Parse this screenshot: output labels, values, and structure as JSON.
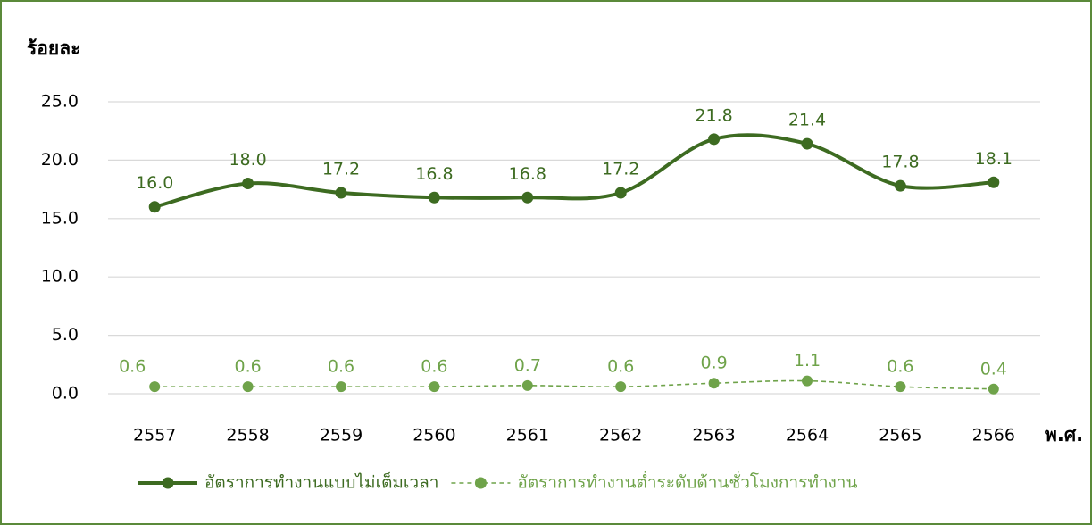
{
  "chart_data": {
    "type": "line",
    "y_label": "ร้อยละ",
    "x_label": "พ.ศ.",
    "categories": [
      "2557",
      "2558",
      "2559",
      "2560",
      "2561",
      "2562",
      "2563",
      "2564",
      "2565",
      "2566"
    ],
    "series": [
      {
        "name": "อัตราการทำงานแบบไม่เต็มเวลา",
        "color": "#3d6b21",
        "dashed": false,
        "values": [
          16.0,
          18.0,
          17.2,
          16.8,
          16.8,
          17.2,
          21.8,
          21.4,
          17.8,
          18.1
        ],
        "value_labels": [
          "16.0",
          "18.0",
          "17.2",
          "16.8",
          "16.8",
          "17.2",
          "21.8",
          "21.4",
          "17.8",
          "18.1"
        ]
      },
      {
        "name": "อัตราการทำงานต่ำระดับด้านชั่วโมงการทำงาน",
        "color": "#6fa34a",
        "dashed": true,
        "values": [
          0.6,
          0.6,
          0.6,
          0.6,
          0.7,
          0.6,
          0.9,
          1.1,
          0.6,
          0.4
        ],
        "value_labels": [
          "0.6",
          "0.6",
          "0.6",
          "0.6",
          "0.7",
          "0.6",
          "0.9",
          "1.1",
          "0.6",
          "0.4"
        ]
      }
    ],
    "ylim": [
      0,
      25
    ],
    "yticks": [
      {
        "value": 0,
        "label": "0.0"
      },
      {
        "value": 5,
        "label": "5.0"
      },
      {
        "value": 10,
        "label": "10.0"
      },
      {
        "value": 15,
        "label": "15.0"
      },
      {
        "value": 20,
        "label": "20.0"
      },
      {
        "value": 25,
        "label": "25.0"
      }
    ],
    "grid": true,
    "smooth": true
  }
}
